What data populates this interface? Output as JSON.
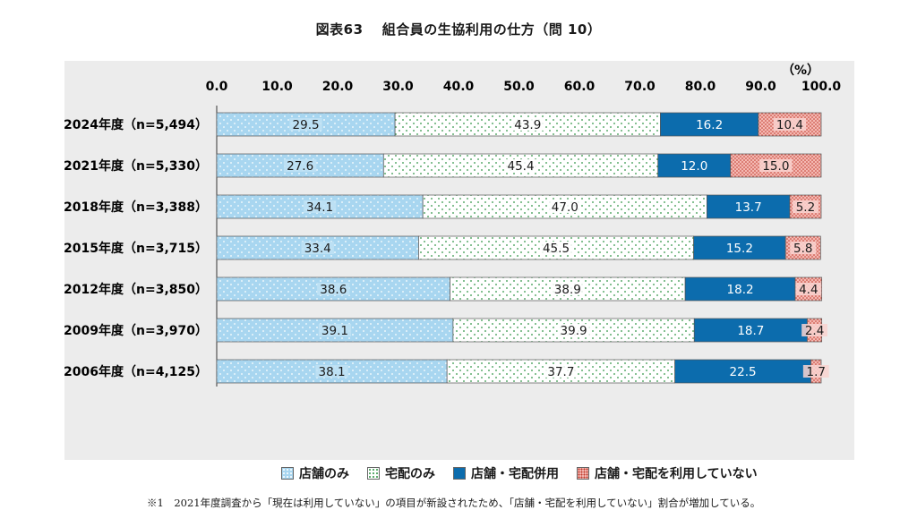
{
  "title": "図表63　 組合員の生協利用の仕方（問 10）",
  "note": "※1　2021年度調査から「現在は利用していない」の項目が新設されたため、「店舗・宅配を利用していない」割合が増加している。",
  "colors": {
    "store": "#a8d6f0",
    "home": "#ffffff",
    "both": "#0c6cad",
    "none": "#f4b8b2",
    "store_dot": "#ffffff",
    "home_dot": "#2e9444",
    "none_dot": "#c0392b",
    "panel": "#ececec"
  },
  "chart_data": {
    "type": "bar",
    "orientation": "horizontal",
    "stacked": true,
    "unit_label": "（%）",
    "xlim": [
      0,
      100
    ],
    "x_ticks": [
      "0.0",
      "10.0",
      "20.0",
      "30.0",
      "40.0",
      "50.0",
      "60.0",
      "70.0",
      "80.0",
      "90.0",
      "100.0"
    ],
    "categories": [
      "2024年度（n=5,494）",
      "2021年度（n=5,330）",
      "2018年度（n=3,388）",
      "2015年度（n=3,715）",
      "2012年度（n=3,850）",
      "2009年度（n=3,970）",
      "2006年度（n=4,125）"
    ],
    "series": [
      {
        "name": "店舗のみ",
        "key": "store",
        "values": [
          29.5,
          27.6,
          34.1,
          33.4,
          38.6,
          39.1,
          38.1
        ]
      },
      {
        "name": "宅配のみ",
        "key": "home",
        "values": [
          43.9,
          45.4,
          47.0,
          45.5,
          38.9,
          39.9,
          37.7
        ]
      },
      {
        "name": "店舗・宅配併用",
        "key": "both",
        "values": [
          16.2,
          12.0,
          13.7,
          15.2,
          18.2,
          18.7,
          22.5
        ]
      },
      {
        "name": "店舗・宅配を利用していない",
        "key": "none",
        "values": [
          10.4,
          15.0,
          5.2,
          5.8,
          4.4,
          2.4,
          1.7
        ]
      }
    ],
    "legend_position": "bottom",
    "grid": false
  }
}
